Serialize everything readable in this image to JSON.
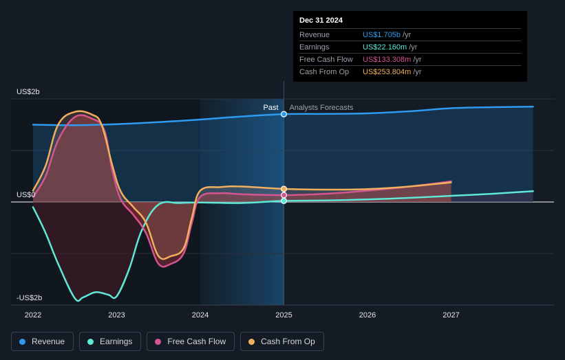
{
  "tooltip": {
    "date": "Dec 31 2024",
    "rows": [
      {
        "label": "Revenue",
        "value": "US$1.705b",
        "unit": "/yr",
        "color": "#2f9bf0"
      },
      {
        "label": "Earnings",
        "value": "US$22.160m",
        "unit": "/yr",
        "color": "#5ee8d6"
      },
      {
        "label": "Free Cash Flow",
        "value": "US$133.308m",
        "unit": "/yr",
        "color": "#d6548f"
      },
      {
        "label": "Cash From Op",
        "value": "US$253.804m",
        "unit": "/yr",
        "color": "#f2b05e"
      }
    ]
  },
  "legend": [
    {
      "label": "Revenue",
      "color": "#2f9bf0"
    },
    {
      "label": "Earnings",
      "color": "#5ee8d6"
    },
    {
      "label": "Free Cash Flow",
      "color": "#d6548f"
    },
    {
      "label": "Cash From Op",
      "color": "#f2b05e"
    }
  ],
  "chart_data": {
    "type": "line",
    "y_tick_labels": [
      "US$2b",
      "US$0",
      "-US$2b"
    ],
    "x_tick_labels": [
      "2022",
      "2023",
      "2024",
      "2025",
      "2026",
      "2027"
    ],
    "past_label": "Past",
    "forecast_label": "Analysts Forecasts",
    "ylim": [
      -2.0,
      2.0
    ],
    "xlim": [
      2021.75,
      2027.98
    ],
    "divider_x": 2025.0,
    "highlight_range": [
      2024.0,
      2025.0
    ],
    "marker_x": 2025.0,
    "series": [
      {
        "name": "Revenue",
        "color": "#2f9bf0",
        "fill": true,
        "points": [
          [
            2022.0,
            1.5
          ],
          [
            2022.5,
            1.49
          ],
          [
            2023.0,
            1.51
          ],
          [
            2023.5,
            1.55
          ],
          [
            2024.0,
            1.6
          ],
          [
            2024.5,
            1.66
          ],
          [
            2025.0,
            1.705
          ],
          [
            2025.5,
            1.71
          ],
          [
            2026.0,
            1.72
          ],
          [
            2026.5,
            1.76
          ],
          [
            2027.0,
            1.82
          ],
          [
            2027.5,
            1.84
          ],
          [
            2027.98,
            1.85
          ]
        ]
      },
      {
        "name": "Earnings",
        "color": "#5ee8d6",
        "fill": false,
        "points": [
          [
            2022.0,
            -0.1
          ],
          [
            2022.15,
            -0.6
          ],
          [
            2022.3,
            -1.2
          ],
          [
            2022.5,
            -1.87
          ],
          [
            2022.6,
            -1.85
          ],
          [
            2022.75,
            -1.75
          ],
          [
            2022.9,
            -1.8
          ],
          [
            2023.0,
            -1.83
          ],
          [
            2023.15,
            -1.3
          ],
          [
            2023.3,
            -0.55
          ],
          [
            2023.5,
            -0.05
          ],
          [
            2023.75,
            -0.02
          ],
          [
            2024.0,
            -0.01
          ],
          [
            2024.5,
            -0.02
          ],
          [
            2025.0,
            0.022
          ],
          [
            2025.5,
            0.03
          ],
          [
            2026.0,
            0.05
          ],
          [
            2026.5,
            0.08
          ],
          [
            2027.0,
            0.12
          ],
          [
            2027.5,
            0.16
          ],
          [
            2027.98,
            0.21
          ]
        ]
      },
      {
        "name": "Free Cash Flow",
        "color": "#d6548f",
        "fill": true,
        "points": [
          [
            2022.0,
            0.1
          ],
          [
            2022.15,
            0.5
          ],
          [
            2022.3,
            1.2
          ],
          [
            2022.5,
            1.65
          ],
          [
            2022.7,
            1.62
          ],
          [
            2022.85,
            1.4
          ],
          [
            2022.95,
            0.6
          ],
          [
            2023.05,
            0.05
          ],
          [
            2023.2,
            -0.25
          ],
          [
            2023.35,
            -0.6
          ],
          [
            2023.5,
            -1.2
          ],
          [
            2023.65,
            -1.2
          ],
          [
            2023.8,
            -1.0
          ],
          [
            2023.9,
            -0.4
          ],
          [
            2024.0,
            0.1
          ],
          [
            2024.25,
            0.17
          ],
          [
            2024.5,
            0.15
          ],
          [
            2025.0,
            0.133
          ],
          [
            2025.5,
            0.16
          ],
          [
            2026.0,
            0.22
          ],
          [
            2026.5,
            0.3
          ],
          [
            2027.0,
            0.4
          ]
        ]
      },
      {
        "name": "Cash From Op",
        "color": "#f2b05e",
        "fill": true,
        "points": [
          [
            2022.0,
            0.22
          ],
          [
            2022.15,
            0.7
          ],
          [
            2022.3,
            1.5
          ],
          [
            2022.5,
            1.75
          ],
          [
            2022.7,
            1.7
          ],
          [
            2022.82,
            1.5
          ],
          [
            2022.95,
            0.7
          ],
          [
            2023.05,
            0.2
          ],
          [
            2023.2,
            -0.1
          ],
          [
            2023.35,
            -0.4
          ],
          [
            2023.5,
            -1.05
          ],
          [
            2023.65,
            -1.05
          ],
          [
            2023.8,
            -0.9
          ],
          [
            2023.9,
            -0.3
          ],
          [
            2024.0,
            0.22
          ],
          [
            2024.25,
            0.29
          ],
          [
            2024.5,
            0.3
          ],
          [
            2025.0,
            0.254
          ],
          [
            2025.5,
            0.24
          ],
          [
            2026.0,
            0.25
          ],
          [
            2026.5,
            0.3
          ],
          [
            2027.0,
            0.38
          ]
        ]
      }
    ]
  }
}
